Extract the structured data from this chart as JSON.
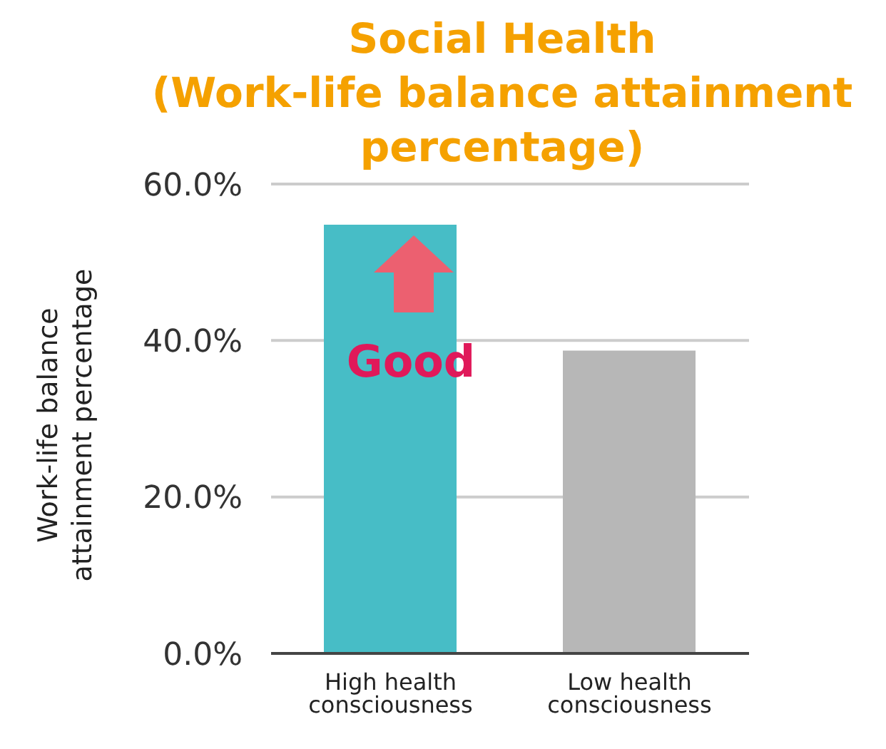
{
  "chart_data": {
    "type": "bar",
    "title": "Social Health",
    "subtitle": "(Work-life balance attainment percentage)",
    "ylabel": "Work-life balance attainment percentage",
    "categories": [
      "High health consciousness",
      "Low health consciousness"
    ],
    "values": [
      54.8,
      38.7
    ],
    "colors": [
      "#47bdc6",
      "#b7b7b7"
    ],
    "ylim": [
      0,
      60
    ],
    "yticks": [
      {
        "value": 0,
        "label": "0.0%"
      },
      {
        "value": 20,
        "label": "20.0%"
      },
      {
        "value": 40,
        "label": "40.0%"
      },
      {
        "value": 60,
        "label": "60.0%"
      }
    ],
    "grid": "y",
    "annotations": [
      "Good"
    ]
  }
}
